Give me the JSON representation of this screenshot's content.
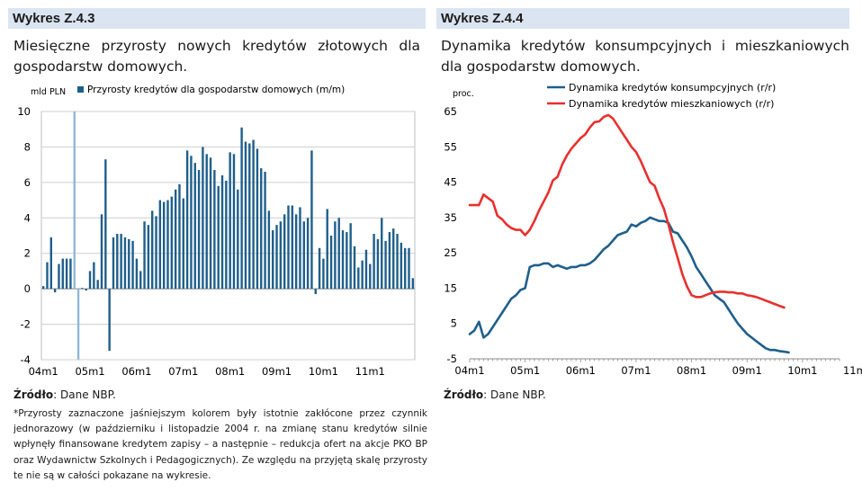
{
  "left": {
    "header": "Wykres Z.4.3",
    "subtitle": "Miesięczne przyrosty nowych kredytów złotowych dla gospodarstw domowych.",
    "source_label": "Źródło",
    "source_text": ": Dane NBP.",
    "note": "*Przyrosty zaznaczone jaśniejszym kolorem były istotnie zakłócone przez czynnik jednorazowy (w październiku i listopadzie 2004 r. na zmianę stanu kredytów silnie wpłynęły finansowane kredytem zapisy – a następnie – redukcja ofert na akcje PKO BP oraz Wydawnictw Szkolnych i Pedagogicznych). Ze względu na przyjętą skalę przyrosty te nie są w całości pokazane na wykresie."
  },
  "right": {
    "header": "Wykres Z.4.4",
    "subtitle": "Dynamika kredytów konsumpcyjnych i mieszkaniowych dla gospodarstw domowych.",
    "source_label": "Źródło",
    "source_text": ": Dane NBP."
  },
  "colors": {
    "bar": "#1f5f8b",
    "bar_light": "#8fb9d9",
    "consumer": "#1f5f8b",
    "mortgage": "#e8302e",
    "header_bg": "#dbe5f1"
  },
  "chart_data": [
    {
      "type": "bar",
      "title": "Miesięczne przyrosty nowych kredytów złotowych dla gospodarstw domowych",
      "ylabel": "mld PLN",
      "ylim": [
        -4,
        10
      ],
      "yticks": [
        "10",
        "8",
        "6",
        "4",
        "2",
        "0",
        "-2",
        "-4"
      ],
      "x_ticks": [
        "04m1",
        "05m1",
        "06m1",
        "07m1",
        "08m1",
        "09m1",
        "10m1",
        "11m1"
      ],
      "legend": "Przyrosty kredytów dla gospodarstw domowych (m/m)",
      "start": "2004-01",
      "values": [
        0.15,
        1.5,
        2.9,
        -0.2,
        1.4,
        1.7,
        1.7,
        1.7,
        10,
        -4,
        0.05,
        -0.1,
        1.0,
        1.5,
        0.5,
        4.2,
        7.3,
        -3.5,
        2.9,
        3.1,
        3.1,
        2.9,
        2.8,
        2.7,
        1.7,
        1.0,
        3.8,
        3.6,
        4.4,
        4.1,
        5.0,
        4.9,
        5.0,
        5.2,
        5.6,
        5.9,
        5.1,
        7.8,
        7.5,
        7.1,
        6.7,
        8.0,
        7.6,
        7.4,
        6.7,
        5.8,
        6.4,
        6.1,
        7.7,
        7.6,
        5.6,
        9.1,
        8.3,
        8.2,
        8.4,
        7.9,
        6.8,
        6.6,
        4.4,
        3.3,
        3.6,
        3.8,
        4.2,
        4.7,
        4.7,
        4.2,
        4.6,
        3.8,
        4.0,
        7.8,
        -0.3,
        2.3,
        1.7,
        4.5,
        3.0,
        3.8,
        4.0,
        3.3,
        3.2,
        3.7,
        2.4,
        1.2,
        1.6,
        2.2,
        1.4,
        3.1,
        2.8,
        4.0,
        2.7,
        3.2,
        3.4,
        3.1,
        2.6,
        2.3,
        2.3,
        0.6
      ],
      "highlighted_light": [
        8,
        9
      ]
    },
    {
      "type": "line",
      "title": "Dynamika kredytów konsumpcyjnych i mieszkaniowych dla gospodarstw domowych",
      "ylabel": "proc.",
      "ylim": [
        -5,
        65
      ],
      "yticks": [
        "65",
        "55",
        "45",
        "35",
        "25",
        "15",
        "5",
        "-5"
      ],
      "x_ticks": [
        "04m1",
        "05m1",
        "06m1",
        "07m1",
        "08m1",
        "09m1",
        "10m1",
        "11m1"
      ],
      "start": "2004-01",
      "series": [
        {
          "name": "Dynamika kredytów konsumpcyjnych (r/r)",
          "values": [
            2,
            3,
            5.5,
            1,
            2,
            4,
            6,
            8,
            10,
            12,
            13,
            14.5,
            15,
            21,
            21.5,
            21.5,
            22,
            22,
            21,
            21.5,
            21,
            20.5,
            21,
            21,
            21.5,
            21.5,
            22,
            23,
            24.5,
            26,
            27,
            28.5,
            30,
            30.5,
            31,
            33,
            32.5,
            33.5,
            34,
            35,
            34.5,
            34,
            34,
            33.5,
            31,
            30.5,
            28.5,
            26.5,
            24,
            21,
            19,
            17,
            15,
            13,
            12,
            11,
            9,
            7,
            5,
            3.5,
            2,
            1,
            0,
            -1,
            -2,
            -2.5,
            -2.5,
            -2.8,
            -3,
            -3.2
          ]
        },
        {
          "name": "Dynamika kredytów mieszkaniowych (r/r)",
          "values": [
            38.5,
            38.5,
            38.5,
            41.5,
            40.5,
            39.5,
            35.5,
            34.5,
            33,
            32,
            31.5,
            31.5,
            30,
            31.5,
            34,
            37,
            39.5,
            42,
            45.5,
            46.5,
            50,
            52.5,
            54.5,
            56,
            57.5,
            58.5,
            60.5,
            62,
            62.2,
            63.5,
            64,
            63,
            61,
            59,
            57,
            55,
            53.5,
            51,
            48,
            45,
            44,
            40.5,
            37.5,
            33,
            28,
            23.5,
            19,
            15.5,
            13,
            12.5,
            12.5,
            13,
            13.5,
            13.8,
            14,
            14,
            13.8,
            13.8,
            13.5,
            13.5,
            13,
            12.8,
            12.5,
            12,
            11.5,
            11,
            10.5,
            10,
            9.5
          ]
        }
      ]
    }
  ]
}
